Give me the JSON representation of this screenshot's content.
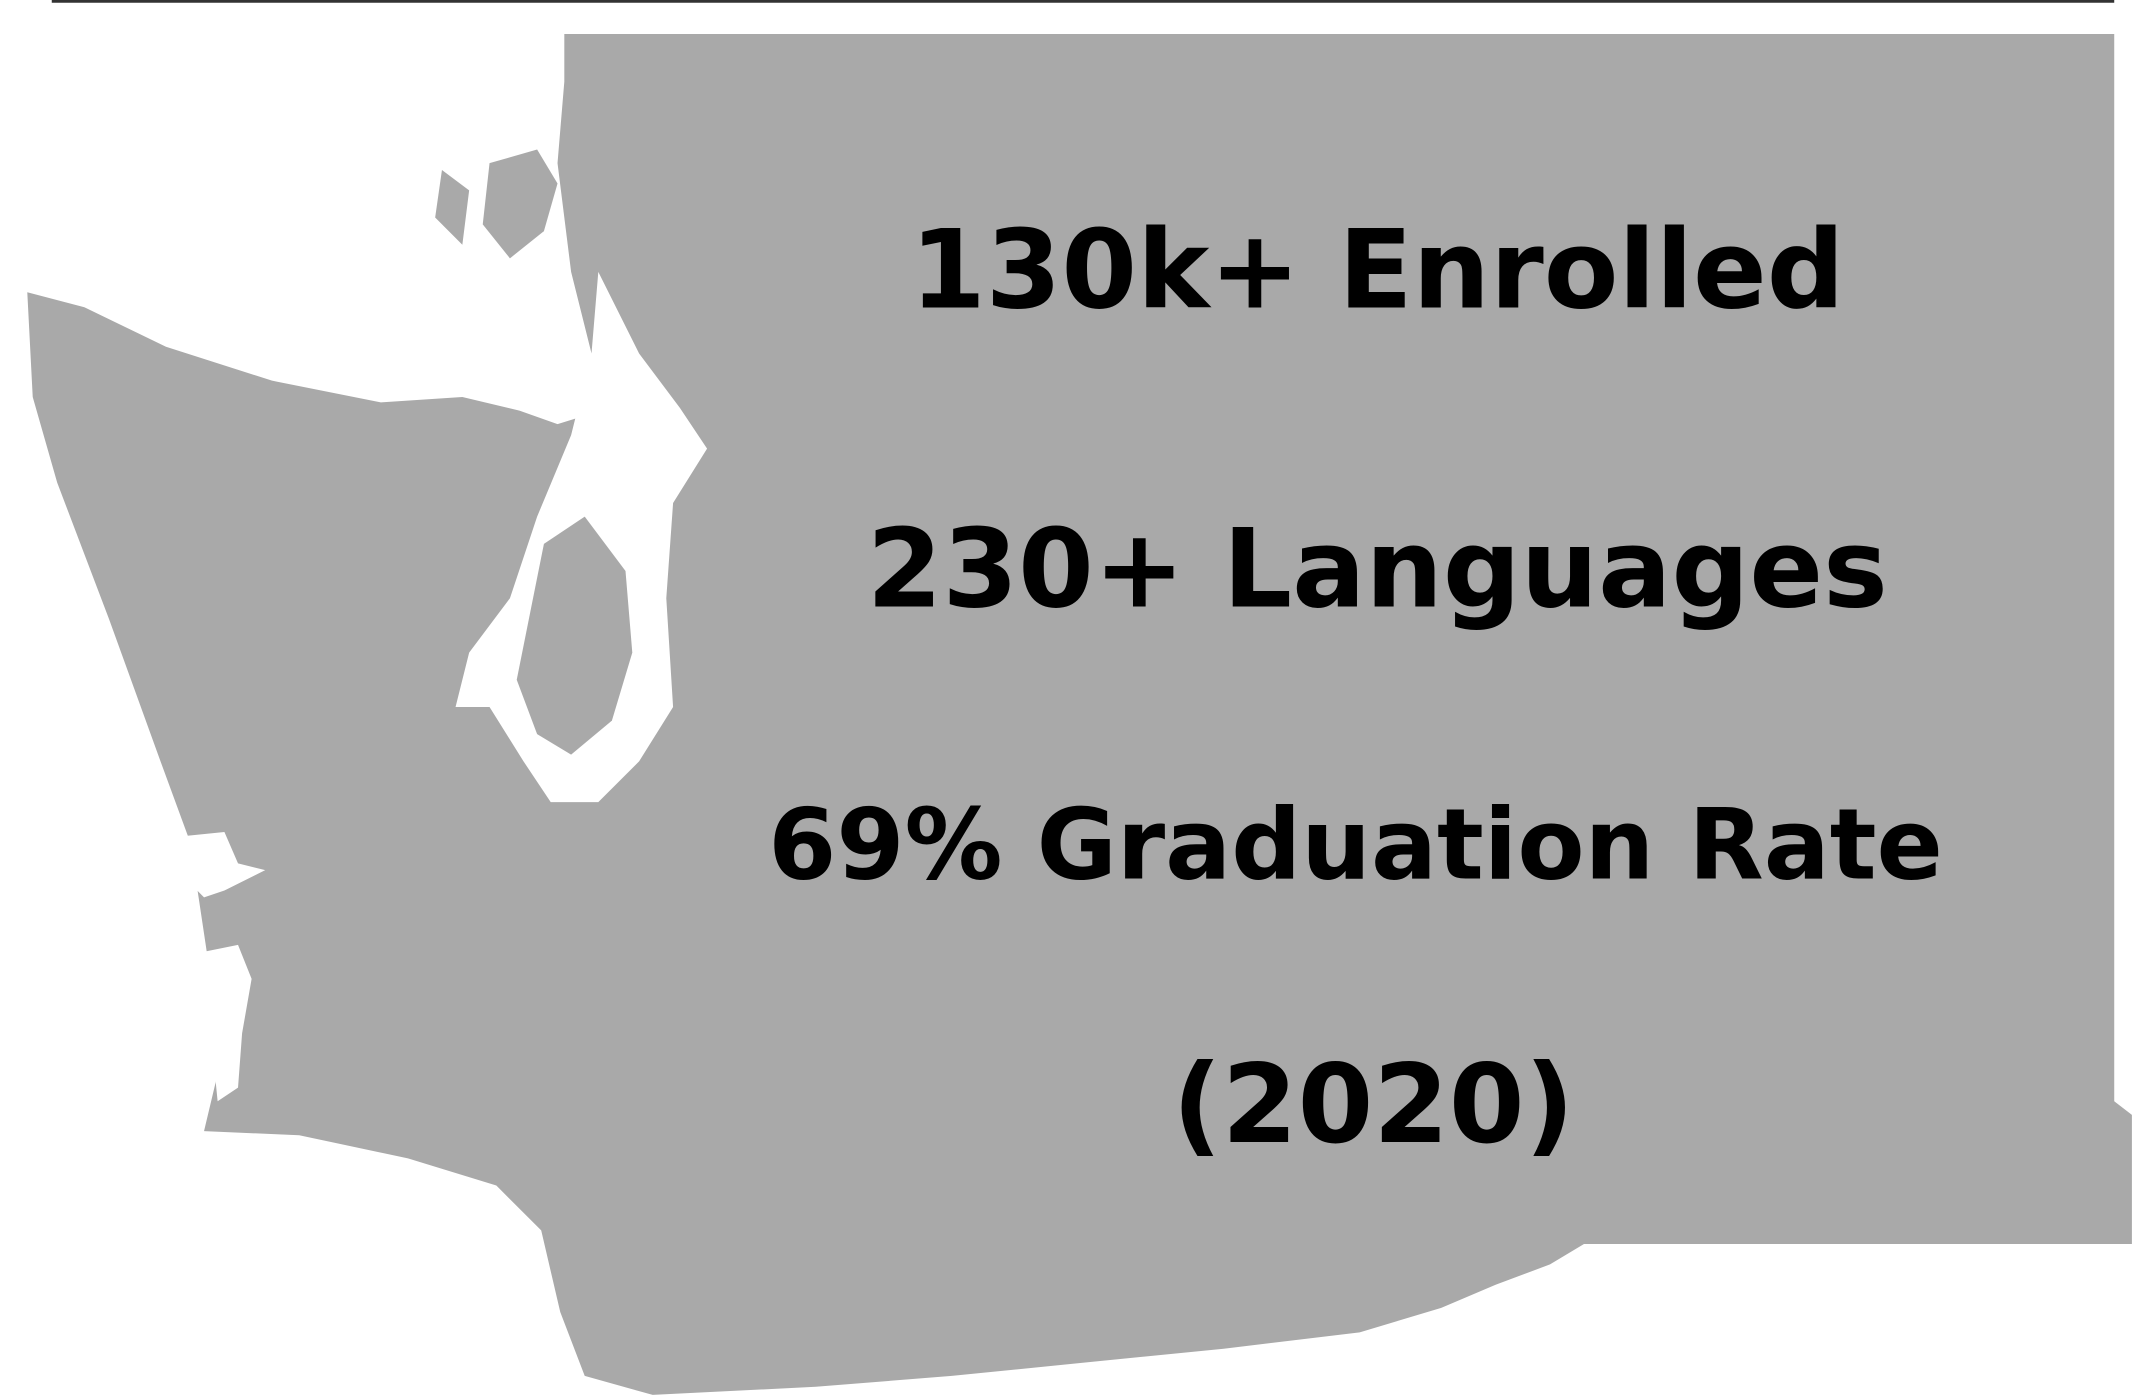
{
  "stats": [
    "130k+ Enrolled",
    "230+ Languages",
    "69% Graduation Rate",
    "(2020)"
  ]
}
